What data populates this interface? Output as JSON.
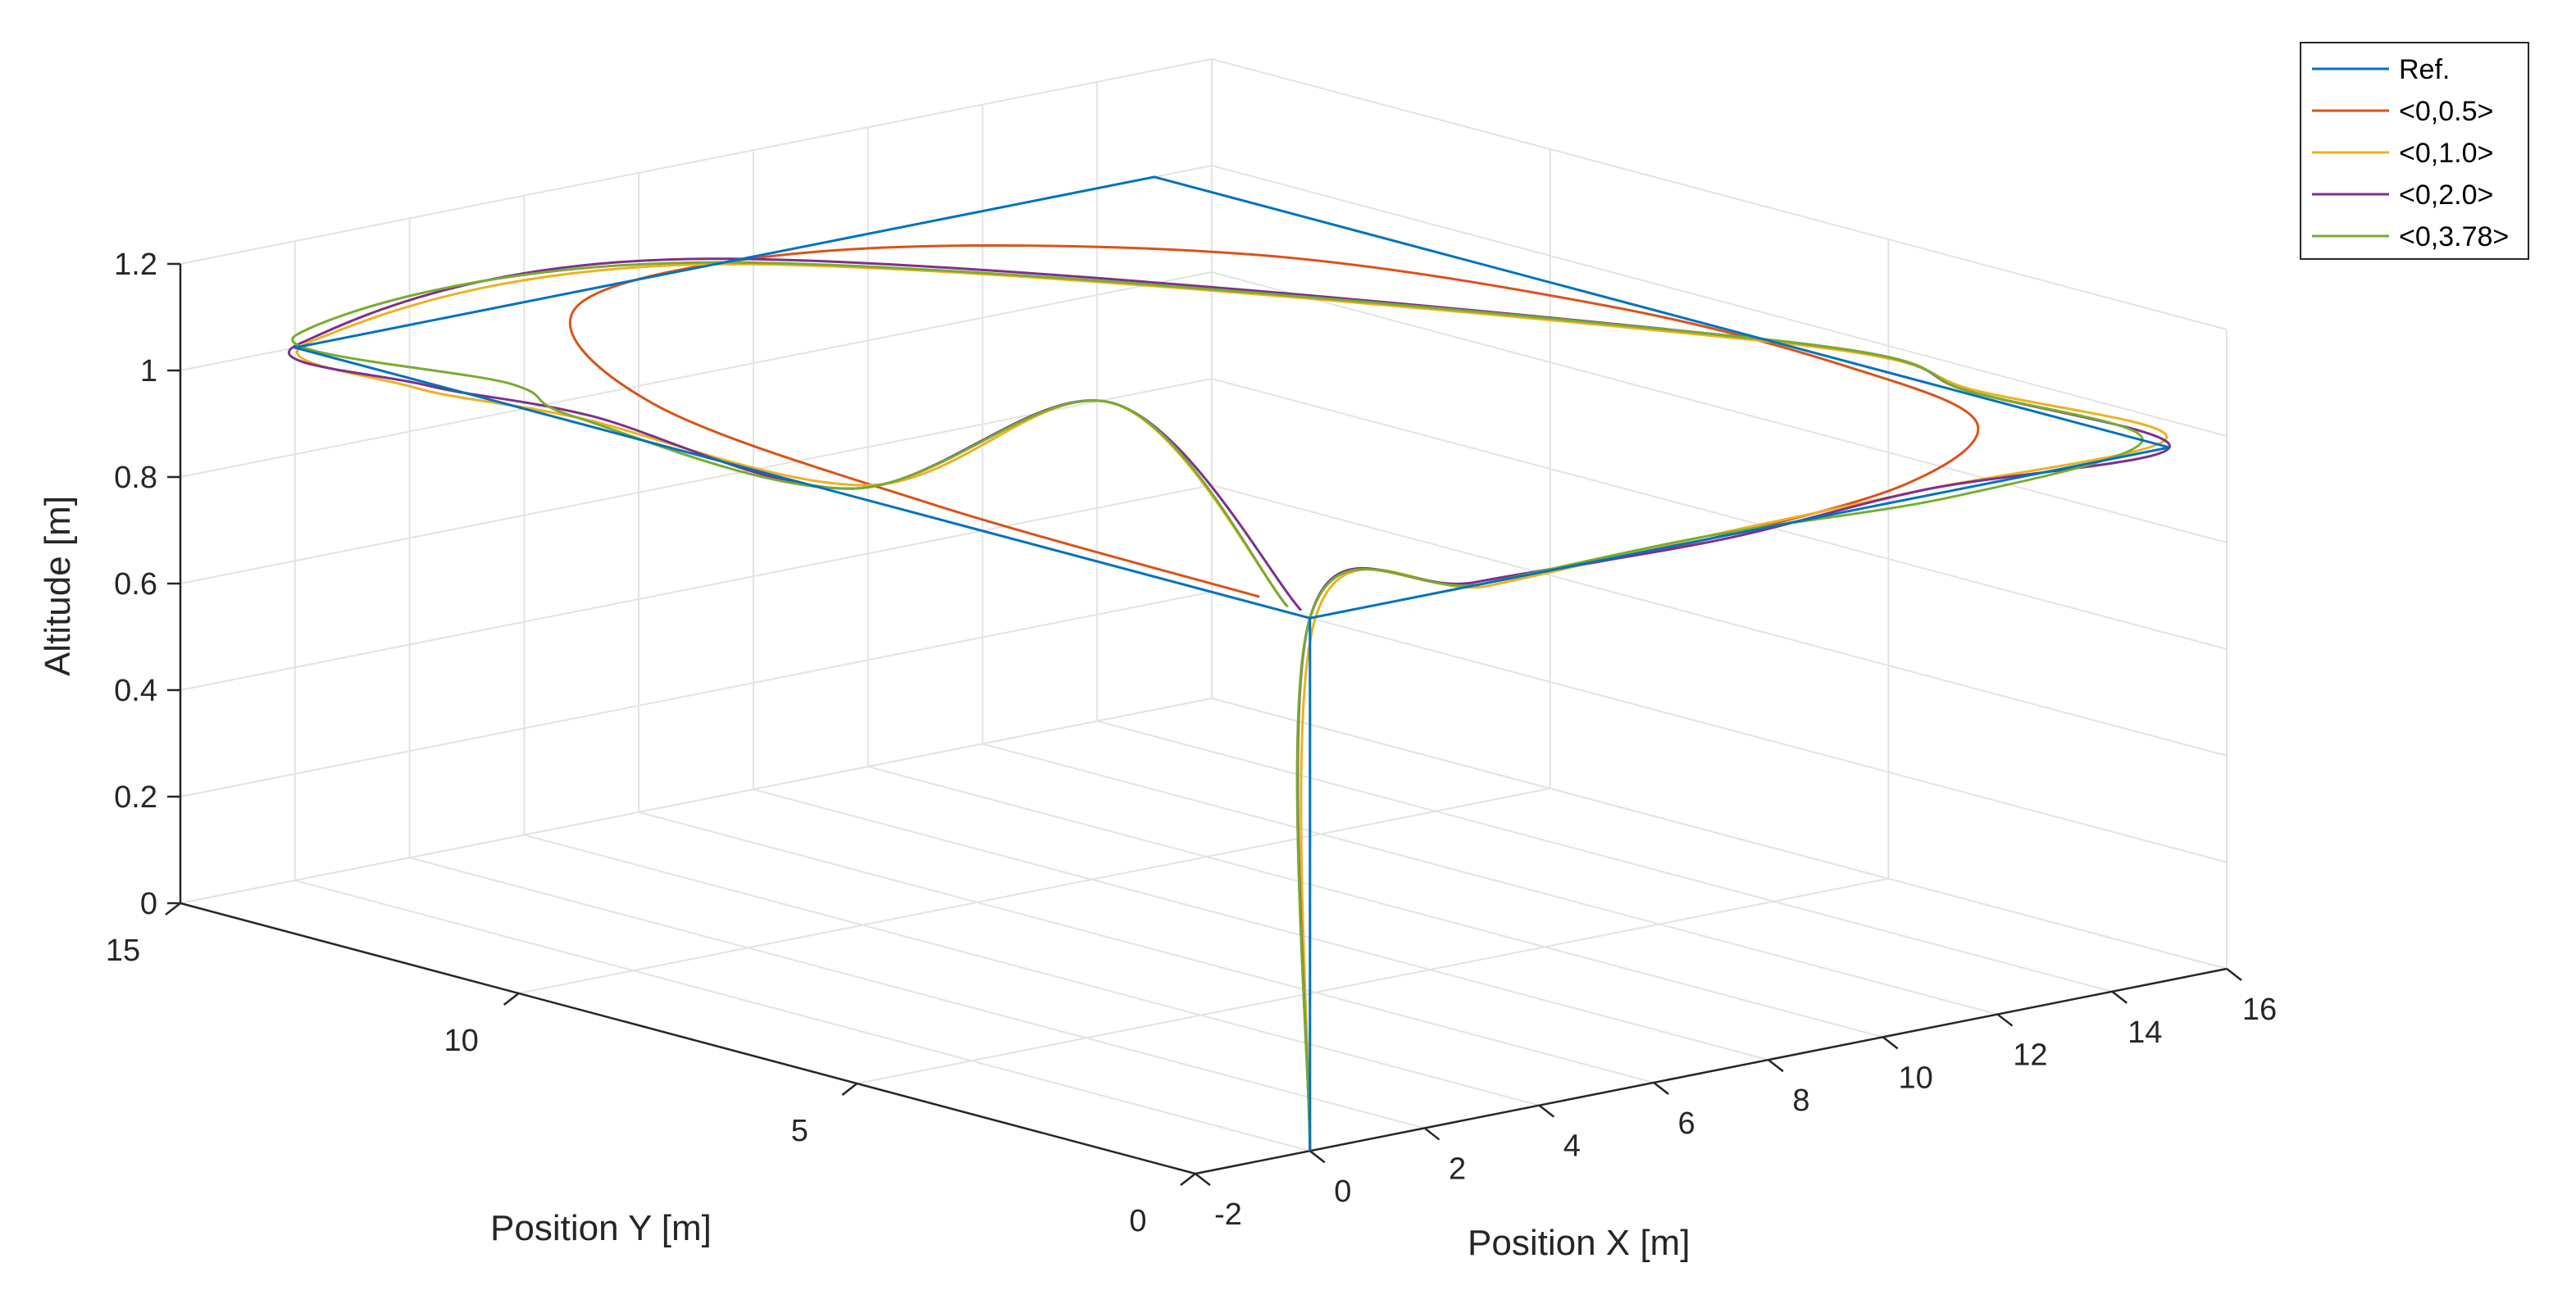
{
  "chart_data": {
    "type": "line3d",
    "title": "",
    "xlabel": "Position X [m]",
    "ylabel": "Position Y [m]",
    "zlabel": "Altitude [m]",
    "xlim": [
      -2,
      16
    ],
    "ylim": [
      0,
      15
    ],
    "zlim": [
      0,
      1.2
    ],
    "xticks": [
      "-2",
      "0",
      "2",
      "4",
      "6",
      "8",
      "10",
      "12",
      "14",
      "16"
    ],
    "yticks": [
      "0",
      "5",
      "10",
      "15"
    ],
    "zticks": [
      "0",
      "0.2",
      "0.4",
      "0.6",
      "0.8",
      "1",
      "1.2"
    ],
    "grid": true,
    "legend_position": "top-right",
    "series": [
      {
        "name": "Ref.",
        "color": "#0072BD",
        "x": [
          0,
          0,
          15,
          15,
          0,
          0
        ],
        "y": [
          0,
          0,
          0,
          15,
          15,
          0
        ],
        "z": [
          0,
          1,
          1,
          1,
          1,
          1
        ]
      },
      {
        "name": "<0,0.5>",
        "color": "#D95319",
        "x": [
          0,
          0,
          3,
          7,
          11,
          14,
          14.8,
          14.7,
          13,
          9,
          4.5,
          1.5,
          0.5,
          0.3
        ],
        "y": [
          0,
          0,
          0,
          0,
          0.5,
          2,
          4.5,
          8,
          12,
          14.7,
          14.6,
          11,
          6,
          1
        ],
        "z": [
          0,
          1,
          1,
          1,
          1,
          1,
          1,
          1,
          1,
          1,
          1,
          1,
          1,
          1
        ]
      },
      {
        "name": "<0,1.0>",
        "color": "#EDB120",
        "x": [
          0,
          0.1,
          3,
          7,
          11,
          15.3,
          15.2,
          14.9,
          7.5,
          0.4,
          -0.3,
          0.2,
          0.6,
          0.1,
          0.2
        ],
        "y": [
          0,
          0,
          -0.1,
          0.1,
          0.2,
          0.3,
          3,
          6,
          14.9,
          15.1,
          13,
          11,
          7,
          3,
          0.5
        ],
        "z": [
          0,
          1,
          1,
          1,
          1,
          1,
          1,
          1,
          1,
          1,
          1,
          1,
          1,
          1.3,
          1
        ]
      },
      {
        "name": "<0,2.0>",
        "color": "#7E2F8E",
        "x": [
          0,
          0,
          3,
          7,
          11,
          15,
          15.1,
          15,
          7.5,
          0.2,
          -0.1,
          0.4,
          0.3,
          0.1,
          0.2
        ],
        "y": [
          0,
          0,
          0.1,
          -0.1,
          0.2,
          0,
          3,
          6,
          15.2,
          15.1,
          13,
          11,
          7,
          3,
          0.3
        ],
        "z": [
          0,
          1,
          1,
          1,
          1,
          1,
          1,
          1,
          1,
          1,
          1,
          1,
          1,
          1.3,
          1
        ]
      },
      {
        "name": "<0,3.78>",
        "color": "#77AC30",
        "x": [
          0,
          0,
          3,
          7,
          11,
          15,
          15.1,
          15,
          7.5,
          0.5,
          0.8,
          0.2,
          0.3,
          0.1,
          0.2
        ],
        "y": [
          0,
          0,
          0,
          0.1,
          -0.2,
          0.4,
          3,
          6,
          15,
          15.4,
          12.5,
          11,
          7,
          3,
          0.5
        ],
        "z": [
          0,
          1,
          1,
          1,
          1,
          1,
          1,
          1,
          1,
          1,
          1,
          1,
          1,
          1.3,
          1
        ]
      }
    ]
  }
}
